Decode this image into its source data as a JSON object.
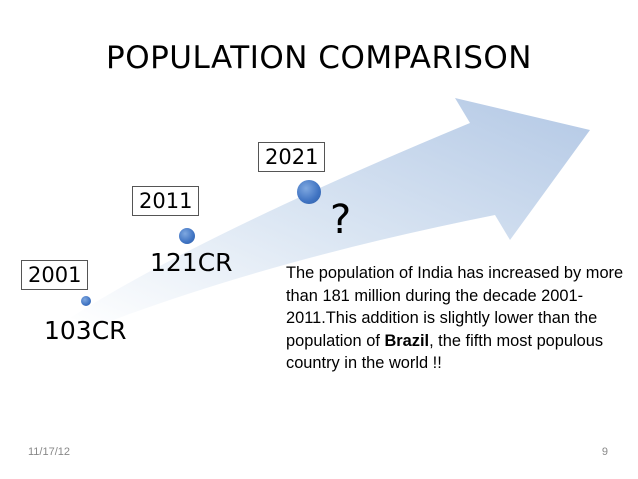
{
  "title": "POPULATION COMPARISON",
  "milestones": [
    {
      "year": "2001",
      "population": "103CR"
    },
    {
      "year": "2011",
      "population": "121CR"
    },
    {
      "year": "2021",
      "population": "?"
    }
  ],
  "description": {
    "part1": "The population of India has increased by more than 181 million during the decade 2001-2011.This addition is slightly lower than the population of ",
    "bold": "Brazil",
    "part2": ", the fifth most populous country in the world !!"
  },
  "footer": {
    "date": "11/17/12",
    "page": "9"
  },
  "colors": {
    "arrow_light": "#eef3fa",
    "arrow_dark": "#b7cbe6",
    "dot": "#3f73c2"
  }
}
